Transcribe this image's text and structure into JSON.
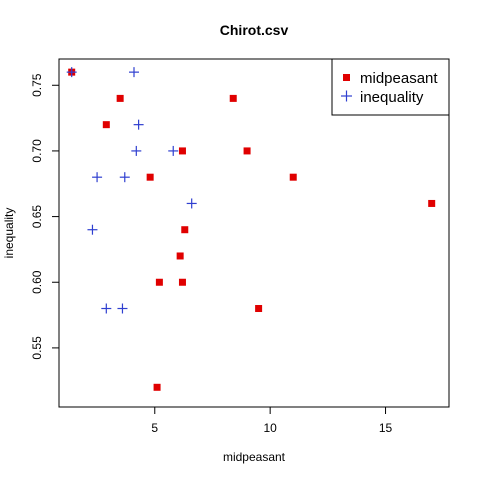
{
  "chart_data": {
    "type": "scatter",
    "title": "Chirot.csv",
    "xlabel": "midpeasant",
    "ylabel": "inequality",
    "xlim": [
      0.85,
      17.75
    ],
    "ylim": [
      0.505,
      0.77
    ],
    "x_ticks": [
      5,
      10,
      15
    ],
    "y_ticks": [
      0.55,
      0.6,
      0.65,
      0.7,
      0.75
    ],
    "x_tick_labels": [
      "5",
      "10",
      "15"
    ],
    "y_tick_labels": [
      "0.55",
      "0.60",
      "0.65",
      "0.70",
      "0.75"
    ],
    "grid": false,
    "legend_position": "top-right",
    "series": [
      {
        "name": "midpeasant",
        "marker": "square",
        "color": "#e00000",
        "x": [
          1.4,
          2.9,
          3.5,
          4.8,
          5.1,
          5.2,
          6.1,
          6.2,
          6.2,
          6.3,
          8.4,
          9.0,
          9.5,
          11.0,
          17.0
        ],
        "y": [
          0.76,
          0.72,
          0.74,
          0.68,
          0.52,
          0.6,
          0.62,
          0.6,
          0.7,
          0.64,
          0.74,
          0.7,
          0.58,
          0.68,
          0.66
        ]
      },
      {
        "name": "inequality",
        "marker": "plus",
        "color": "#2f3fd0",
        "x": [
          1.4,
          2.3,
          2.5,
          2.9,
          3.6,
          3.7,
          4.1,
          4.2,
          4.3,
          5.8,
          6.6
        ],
        "y": [
          0.76,
          0.64,
          0.68,
          0.58,
          0.58,
          0.68,
          0.76,
          0.7,
          0.72,
          0.7,
          0.66
        ]
      }
    ]
  }
}
